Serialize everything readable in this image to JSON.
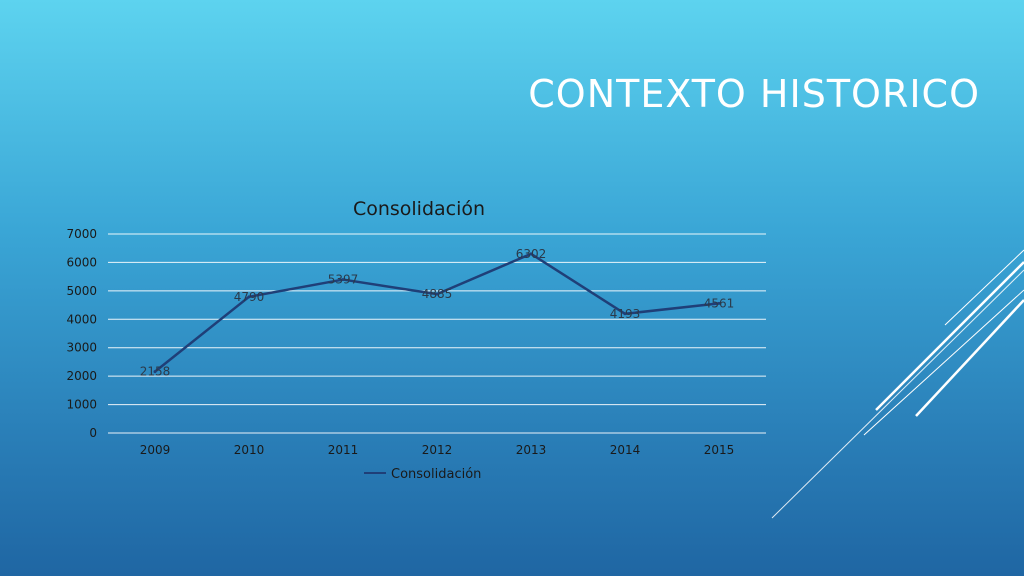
{
  "slide": {
    "title": "CONTEXTO HISTORICO"
  },
  "colors": {
    "series_line": "#1f3f78",
    "gridline": "#ffffff",
    "deco_lines": "#ffffff"
  },
  "chart_data": {
    "type": "line",
    "title": "Consolidación",
    "categories": [
      "2009",
      "2010",
      "2011",
      "2012",
      "2013",
      "2014",
      "2015"
    ],
    "series": [
      {
        "name": "Consolidación",
        "values": [
          2158,
          4790,
          5397,
          4885,
          6302,
          4193,
          4561
        ]
      }
    ],
    "ylim": [
      0,
      7000
    ],
    "yticks": [
      "0",
      "1000",
      "2000",
      "3000",
      "4000",
      "5000",
      "6000",
      "7000"
    ],
    "grid": true,
    "data_labels": true,
    "legend_position": "bottom"
  }
}
